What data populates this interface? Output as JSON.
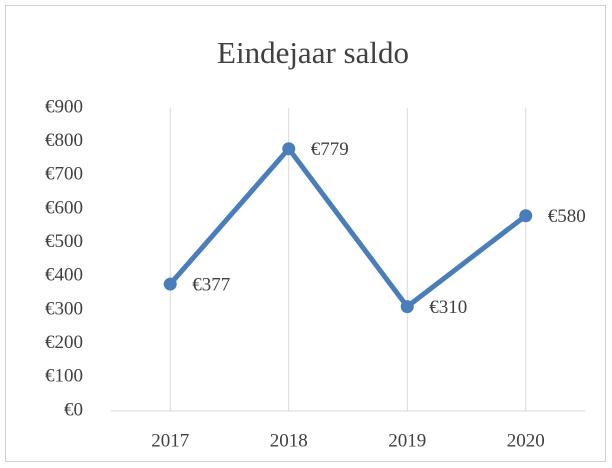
{
  "chart_data": {
    "type": "line",
    "title": "Eindejaar saldo",
    "categories": [
      "2017",
      "2018",
      "2019",
      "2020"
    ],
    "values": [
      377,
      779,
      310,
      580
    ],
    "value_labels": [
      "€377",
      "€779",
      "€310",
      "€580"
    ],
    "color": "#4a7ebb",
    "ylim": [
      0,
      900
    ],
    "yticks": [
      {
        "value": 0,
        "label": "€0"
      },
      {
        "value": 100,
        "label": "€100"
      },
      {
        "value": 200,
        "label": "€200"
      },
      {
        "value": 300,
        "label": "€300"
      },
      {
        "value": 400,
        "label": "€400"
      },
      {
        "value": 500,
        "label": "€500"
      },
      {
        "value": 600,
        "label": "€600"
      },
      {
        "value": 700,
        "label": "€700"
      },
      {
        "value": 800,
        "label": "€800"
      },
      {
        "value": 900,
        "label": "€900"
      }
    ],
    "grid": "vertical"
  }
}
